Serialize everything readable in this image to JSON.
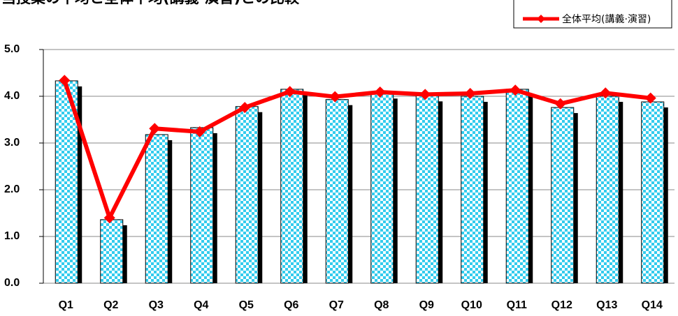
{
  "chart_data": {
    "type": "bar_line",
    "title": "当授業の平均と全体平均(講義·演習)との比較",
    "categories": [
      "Q1",
      "Q2",
      "Q3",
      "Q4",
      "Q5",
      "Q6",
      "Q7",
      "Q8",
      "Q9",
      "Q10",
      "Q11",
      "Q12",
      "Q13",
      "Q14"
    ],
    "series": [
      {
        "type": "bar",
        "color": "#33ccee",
        "values": [
          4.33,
          1.36,
          3.18,
          3.33,
          3.78,
          4.15,
          3.93,
          4.07,
          4.01,
          4.0,
          4.15,
          3.76,
          4.0,
          3.88
        ]
      },
      {
        "type": "line",
        "name": "全体平均(講義·演習)",
        "color": "#ff0000",
        "values": [
          4.34,
          1.4,
          3.31,
          3.24,
          3.76,
          4.1,
          3.99,
          4.09,
          4.04,
          4.06,
          4.13,
          3.84,
          4.07,
          3.96
        ]
      }
    ],
    "ylim": [
      0,
      5
    ],
    "yticks": [
      {
        "value": 0,
        "label": "0.0"
      },
      {
        "value": 1,
        "label": "1.0"
      },
      {
        "value": 2,
        "label": "2.0"
      },
      {
        "value": 3,
        "label": "3.0"
      },
      {
        "value": 4,
        "label": "4.0"
      },
      {
        "value": 5,
        "label": "5.0"
      }
    ],
    "grid": true,
    "legend": "top-right"
  }
}
